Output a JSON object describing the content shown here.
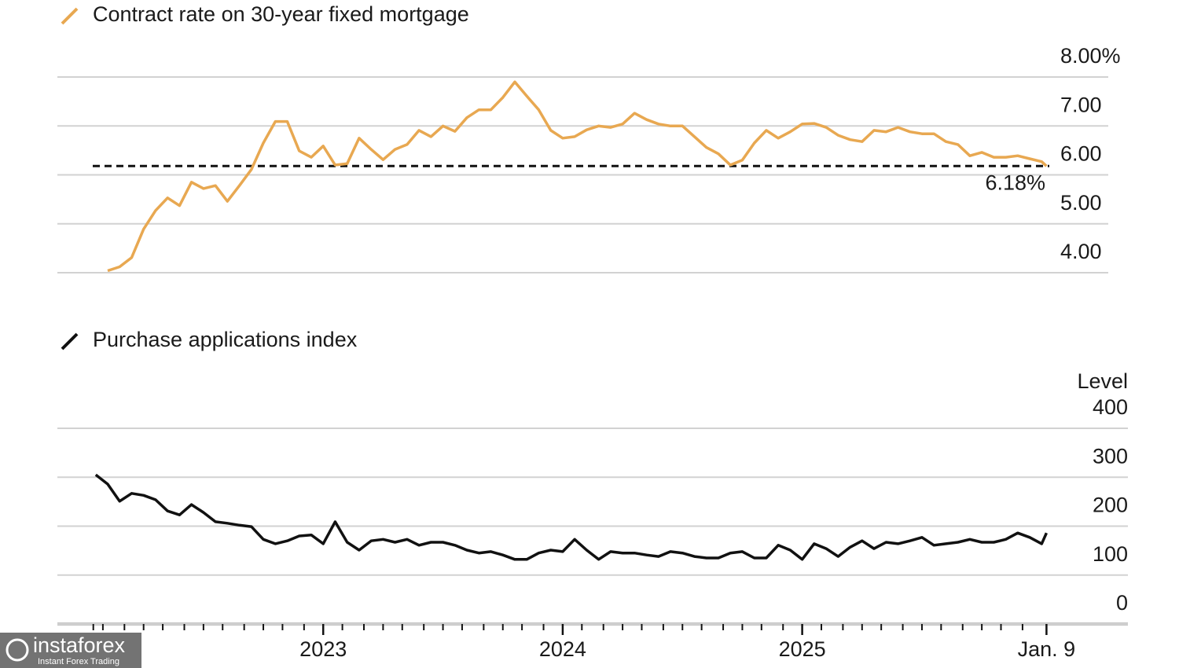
{
  "chart_data": [
    {
      "type": "line",
      "series": [
        {
          "name": "Contract rate on 30-year fixed mortgage",
          "color": "#e8a851",
          "values": [
            4.04,
            4.12,
            4.31,
            4.89,
            5.27,
            5.53,
            5.37,
            5.85,
            5.72,
            5.78,
            5.46,
            5.78,
            6.11,
            6.65,
            7.09,
            7.09,
            6.49,
            6.36,
            6.59,
            6.2,
            6.23,
            6.75,
            6.52,
            6.31,
            6.52,
            6.62,
            6.91,
            6.78,
            7.0,
            6.89,
            7.17,
            7.33,
            7.33,
            7.58,
            7.9,
            7.61,
            7.33,
            6.91,
            6.75,
            6.78,
            6.92,
            7.0,
            6.97,
            7.04,
            7.26,
            7.13,
            7.04,
            7.0,
            7.0,
            6.78,
            6.56,
            6.43,
            6.2,
            6.3,
            6.65,
            6.91,
            6.75,
            6.88,
            7.04,
            7.05,
            6.97,
            6.81,
            6.72,
            6.68,
            6.91,
            6.88,
            6.97,
            6.88,
            6.84,
            6.84,
            6.68,
            6.62,
            6.39,
            6.46,
            6.36,
            6.36,
            6.39,
            6.33,
            6.27,
            6.18
          ]
        }
      ],
      "x": [
        2022.1,
        2022.15,
        2022.2,
        2022.25,
        2022.3,
        2022.35,
        2022.4,
        2022.45,
        2022.5,
        2022.55,
        2022.6,
        2022.65,
        2022.7,
        2022.75,
        2022.8,
        2022.85,
        2022.9,
        2022.95,
        2023,
        2023.05,
        2023.1,
        2023.15,
        2023.2,
        2023.25,
        2023.3,
        2023.35,
        2023.4,
        2023.45,
        2023.5,
        2023.55,
        2023.6,
        2023.65,
        2023.7,
        2023.75,
        2023.8,
        2023.85,
        2023.9,
        2023.95,
        2024,
        2024.05,
        2024.1,
        2024.15,
        2024.2,
        2024.25,
        2024.3,
        2024.35,
        2024.4,
        2024.45,
        2024.5,
        2024.55,
        2024.6,
        2024.65,
        2024.7,
        2024.75,
        2024.8,
        2024.85,
        2024.9,
        2024.95,
        2025,
        2025.05,
        2025.1,
        2025.15,
        2025.2,
        2025.25,
        2025.3,
        2025.35,
        2025.4,
        2025.45,
        2025.5,
        2025.55,
        2025.6,
        2025.65,
        2025.7,
        2025.75,
        2025.8,
        2025.85,
        2025.9,
        2025.95,
        2026,
        2026.02
      ],
      "xlim": [
        2021.89,
        2026.36
      ],
      "ylim": [
        4,
        8
      ],
      "yticks": [
        {
          "value": 8,
          "label": "8.00%"
        },
        {
          "value": 7,
          "label": "7.00"
        },
        {
          "value": 6,
          "label": "6.00"
        },
        {
          "value": 5,
          "label": "5.00"
        },
        {
          "value": 4,
          "label": "4.00"
        }
      ],
      "reference_line": {
        "value": 6.18,
        "label": "6.18%"
      },
      "grid": true
    },
    {
      "type": "line",
      "y_label": "Level",
      "series": [
        {
          "name": "Purchase applications index",
          "color": "#111111",
          "values": [
            305,
            286,
            251,
            267,
            263,
            254,
            231,
            223,
            244,
            228,
            209,
            206,
            202,
            199,
            173,
            164,
            170,
            180,
            182,
            164,
            209,
            167,
            151,
            170,
            173,
            167,
            173,
            161,
            167,
            167,
            161,
            151,
            145,
            148,
            141,
            132,
            132,
            145,
            151,
            148,
            173,
            151,
            132,
            148,
            145,
            145,
            141,
            138,
            148,
            145,
            138,
            135,
            135,
            145,
            148,
            135,
            135,
            161,
            151,
            132,
            164,
            154,
            138,
            157,
            170,
            154,
            167,
            164,
            170,
            177,
            161,
            164,
            167,
            173,
            167,
            167,
            173,
            186,
            177,
            164,
            186
          ]
        }
      ],
      "x": [
        2022.05,
        2022.1,
        2022.15,
        2022.2,
        2022.25,
        2022.3,
        2022.35,
        2022.4,
        2022.45,
        2022.5,
        2022.55,
        2022.6,
        2022.65,
        2022.7,
        2022.75,
        2022.8,
        2022.85,
        2022.9,
        2022.95,
        2023,
        2023.05,
        2023.1,
        2023.15,
        2023.2,
        2023.25,
        2023.3,
        2023.35,
        2023.4,
        2023.45,
        2023.5,
        2023.55,
        2023.6,
        2023.65,
        2023.7,
        2023.75,
        2023.8,
        2023.85,
        2023.9,
        2023.95,
        2024,
        2024.05,
        2024.1,
        2024.15,
        2024.2,
        2024.25,
        2024.3,
        2024.35,
        2024.4,
        2024.45,
        2024.5,
        2024.55,
        2024.6,
        2024.65,
        2024.7,
        2024.75,
        2024.8,
        2024.85,
        2024.9,
        2024.95,
        2025,
        2025.05,
        2025.1,
        2025.15,
        2025.2,
        2025.25,
        2025.3,
        2025.35,
        2025.4,
        2025.45,
        2025.5,
        2025.55,
        2025.6,
        2025.65,
        2025.7,
        2025.75,
        2025.8,
        2025.85,
        2025.9,
        2025.95,
        2026,
        2026.02
      ],
      "xlim": [
        2021.89,
        2026.36
      ],
      "ylim": [
        0,
        400
      ],
      "yticks": [
        400,
        300,
        200,
        100,
        0
      ],
      "xticks": [
        2023,
        2024,
        2025,
        {
          "value": 2026.02,
          "label": "Jan. 9"
        }
      ],
      "minor_xticks": [
        2022.04,
        2022.08,
        2022.17,
        2022.25,
        2022.33,
        2022.42,
        2022.5,
        2022.58,
        2022.67,
        2022.75,
        2022.83,
        2022.92,
        2023.08,
        2023.17,
        2023.25,
        2023.33,
        2023.42,
        2023.5,
        2023.58,
        2023.67,
        2023.75,
        2023.83,
        2023.92,
        2024.08,
        2024.17,
        2024.25,
        2024.33,
        2024.42,
        2024.5,
        2024.58,
        2024.67,
        2024.75,
        2024.83,
        2024.92,
        2025.08,
        2025.17,
        2025.25,
        2025.33,
        2025.42,
        2025.5,
        2025.58,
        2025.67,
        2025.75,
        2025.83,
        2025.92
      ],
      "grid": true
    }
  ],
  "watermark": {
    "name": "instaforex",
    "tagline": "Instant Forex Trading"
  }
}
